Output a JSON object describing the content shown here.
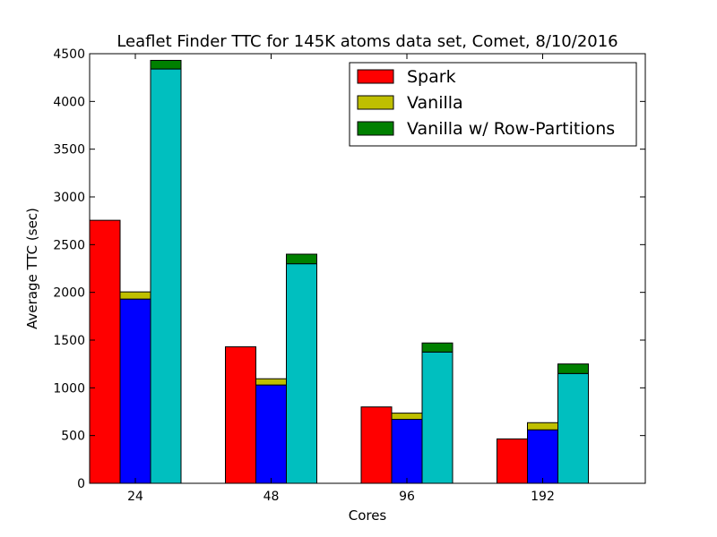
{
  "chart_data": {
    "type": "bar",
    "title": "Leaflet Finder TTC for 145K atoms data set, Comet, 8/10/2016",
    "xlabel": "Cores",
    "ylabel": "Average TTC (sec)",
    "categories": [
      "24",
      "48",
      "96",
      "192"
    ],
    "ylim": [
      0,
      4500
    ],
    "yticks": [
      "0",
      "500",
      "1000",
      "1500",
      "2000",
      "2500",
      "3000",
      "3500",
      "4000",
      "4500"
    ],
    "legend_position": "top-right",
    "series": [
      {
        "name": "Spark",
        "color": "#ff0000",
        "stack": [
          {
            "values": [
              2755,
              1430,
              800,
              465
            ],
            "color": "#ff0000"
          }
        ]
      },
      {
        "name": "Vanilla",
        "color": "#bfbf00",
        "stack": [
          {
            "values": [
              1930,
              1030,
              670,
              560
            ],
            "color": "#0000ff"
          },
          {
            "values": [
              75,
              65,
              65,
              75
            ],
            "color": "#bfbf00"
          }
        ]
      },
      {
        "name": "Vanilla w/ Row-Partitions",
        "color": "#008000",
        "stack": [
          {
            "values": [
              4340,
              2300,
              1375,
              1150
            ],
            "color": "#00bfbf"
          },
          {
            "values": [
              90,
              100,
              95,
              100
            ],
            "color": "#008000"
          }
        ]
      }
    ]
  }
}
